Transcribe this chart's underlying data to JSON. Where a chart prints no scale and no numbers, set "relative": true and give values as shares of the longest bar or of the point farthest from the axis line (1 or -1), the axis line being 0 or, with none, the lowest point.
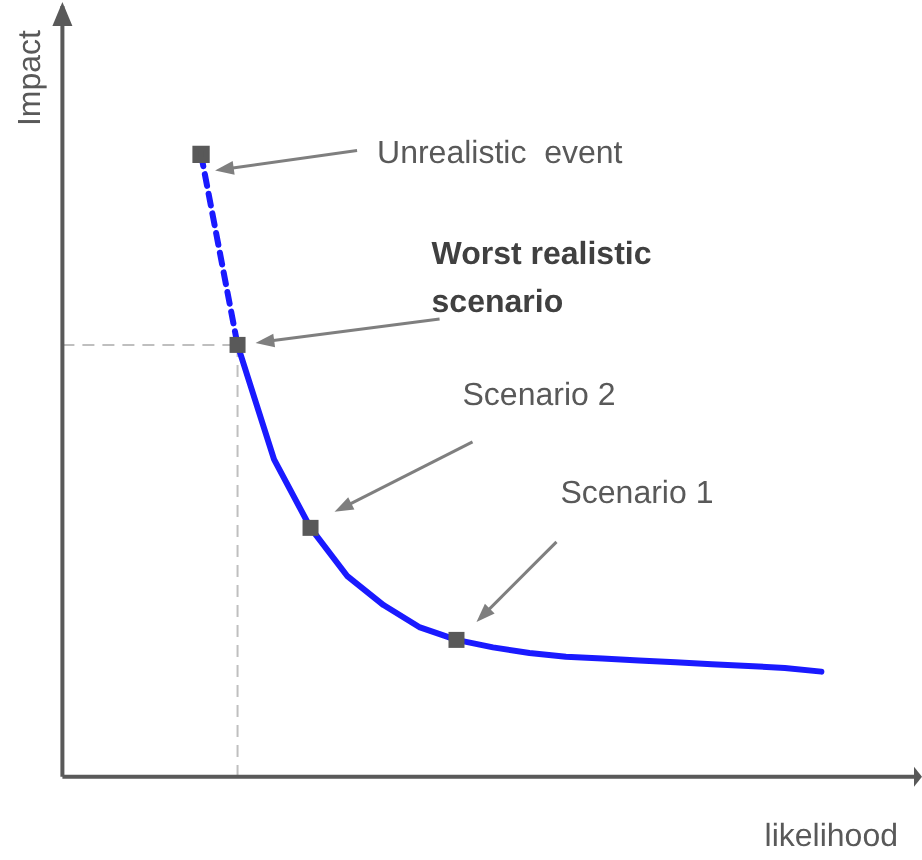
{
  "chart_data": {
    "type": "line",
    "xlabel": "likelihood",
    "ylabel": "Impact",
    "relative": true,
    "categories": [
      null,
      null,
      null,
      null,
      null,
      null,
      null,
      null,
      null,
      null,
      null,
      null,
      null,
      null,
      null,
      null,
      null,
      null
    ],
    "series": [
      {
        "line_style": "dashed",
        "marker": "square",
        "color": "#1a1aff",
        "values": [
          1,
          0.694,
          null,
          null,
          null,
          null,
          null,
          null,
          null,
          null,
          null,
          null,
          null,
          null,
          null,
          null,
          null,
          null
        ]
      },
      {
        "line_style": "solid",
        "color": "#1a1aff",
        "values": [
          null,
          0.694,
          0.51,
          0.4,
          null,
          null,
          null,
          null,
          null,
          null,
          null,
          null,
          null,
          null,
          null,
          null,
          null,
          null
        ]
      },
      {
        "line_style": "solid",
        "color": "#1a1aff",
        "values": [
          null,
          null,
          null,
          0.4,
          0.323,
          0.276,
          0.24,
          0.22,
          null,
          null,
          null,
          null,
          null,
          null,
          null,
          null,
          null,
          null
        ]
      },
      {
        "line_style": "solid",
        "color": "#1a1aff",
        "values": [
          null,
          null,
          null,
          null,
          null,
          null,
          null,
          0.22,
          0.208,
          0.199,
          0.193,
          0.19,
          0.187,
          0.184,
          0.181,
          0.178,
          0.175,
          0.169
        ]
      }
    ],
    "ref_lines": [
      {
        "axis": "y",
        "value": 0.694,
        "color": "#bfbfbf",
        "line_style": "dashed"
      }
    ],
    "annotations": [
      "Unrealistic  event",
      "Worst realistic scenario",
      "Scenario 2",
      "Scenario 1"
    ]
  }
}
